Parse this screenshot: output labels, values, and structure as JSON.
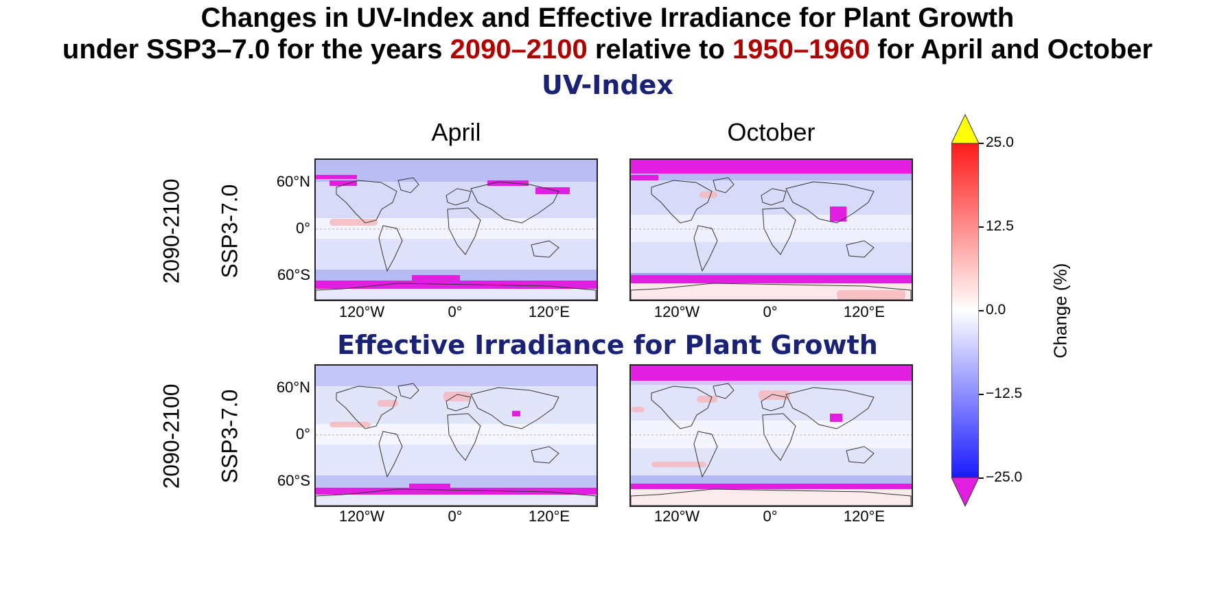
{
  "title": {
    "line1": "Changes in UV-Index and Effective Irradiance for Plant Growth",
    "line2_a": "under SSP3–7.0 for the years ",
    "line2_b": "2090–2100",
    "line2_c": " relative to ",
    "line2_d": "1950–1960",
    "line2_e": " for  April and October"
  },
  "sections": {
    "uv": "UV-Index",
    "effective": "Effective Irradiance for Plant Growth"
  },
  "columns": [
    "April",
    "October"
  ],
  "rows": [
    {
      "period": "2090-2100",
      "scenario": "SSP3-7.0"
    },
    {
      "period": "2090-2100",
      "scenario": "SSP3-7.0"
    }
  ],
  "lat_ticks": [
    "60°N",
    "0°",
    "60°S"
  ],
  "lon_ticks": [
    "120°W",
    "0°",
    "120°E"
  ],
  "colorbar": {
    "label": "Change (%)",
    "ticks": [
      "25.0",
      "12.5",
      "0.0",
      "−12.5",
      "−25.0"
    ],
    "min": -25.0,
    "max": 25.0,
    "colors": {
      "low": "#1a1aff",
      "mid": "#ffffff",
      "high": "#ff1a1a",
      "over": "#ffff00",
      "under": "#e21ee0"
    }
  }
}
